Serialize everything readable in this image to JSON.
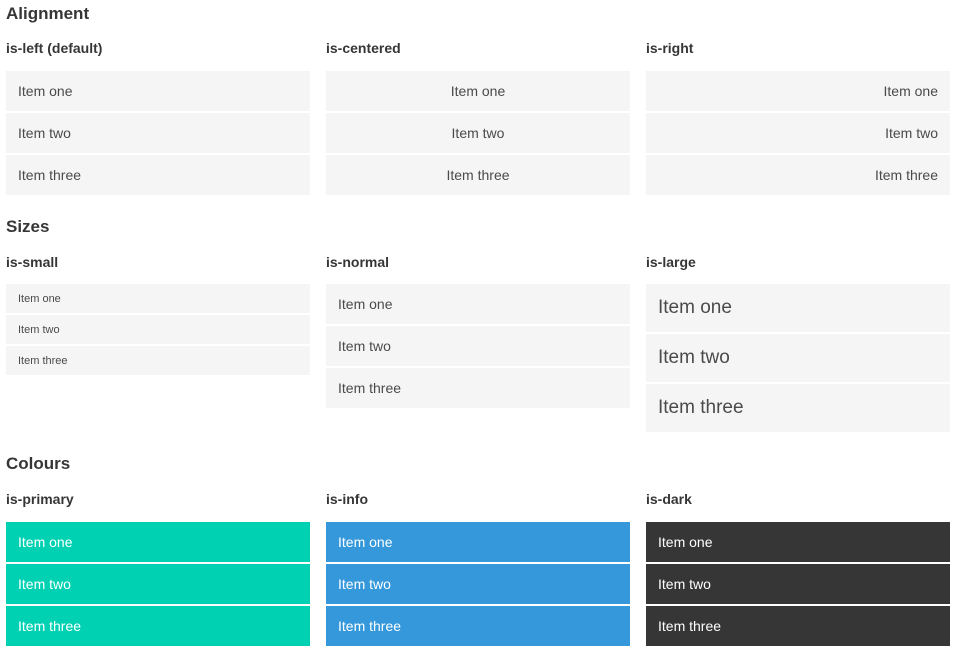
{
  "colors": {
    "primary": "#00d1b2",
    "info": "#3498db",
    "dark": "#363636",
    "item_background": "#f5f5f5",
    "item_text": "#4a4a4a",
    "heading_text": "#363636",
    "page_background": "#ffffff"
  },
  "sections": [
    {
      "title": "Alignment",
      "columns": [
        {
          "heading": "is-left (default)",
          "items": [
            "Item one",
            "Item two",
            "Item three"
          ]
        },
        {
          "heading": "is-centered",
          "items": [
            "Item one",
            "Item two",
            "Item three"
          ]
        },
        {
          "heading": "is-right",
          "items": [
            "Item one",
            "Item two",
            "Item three"
          ]
        }
      ]
    },
    {
      "title": "Sizes",
      "columns": [
        {
          "heading": "is-small",
          "items": [
            "Item one",
            "Item two",
            "Item three"
          ]
        },
        {
          "heading": "is-normal",
          "items": [
            "Item one",
            "Item two",
            "Item three"
          ]
        },
        {
          "heading": "is-large",
          "items": [
            "Item one",
            "Item two",
            "Item three"
          ]
        }
      ]
    },
    {
      "title": "Colours",
      "columns": [
        {
          "heading": "is-primary",
          "items": [
            "Item one",
            "Item two",
            "Item three"
          ]
        },
        {
          "heading": "is-info",
          "items": [
            "Item one",
            "Item two",
            "Item three"
          ]
        },
        {
          "heading": "is-dark",
          "items": [
            "Item one",
            "Item two",
            "Item three"
          ]
        }
      ]
    }
  ]
}
